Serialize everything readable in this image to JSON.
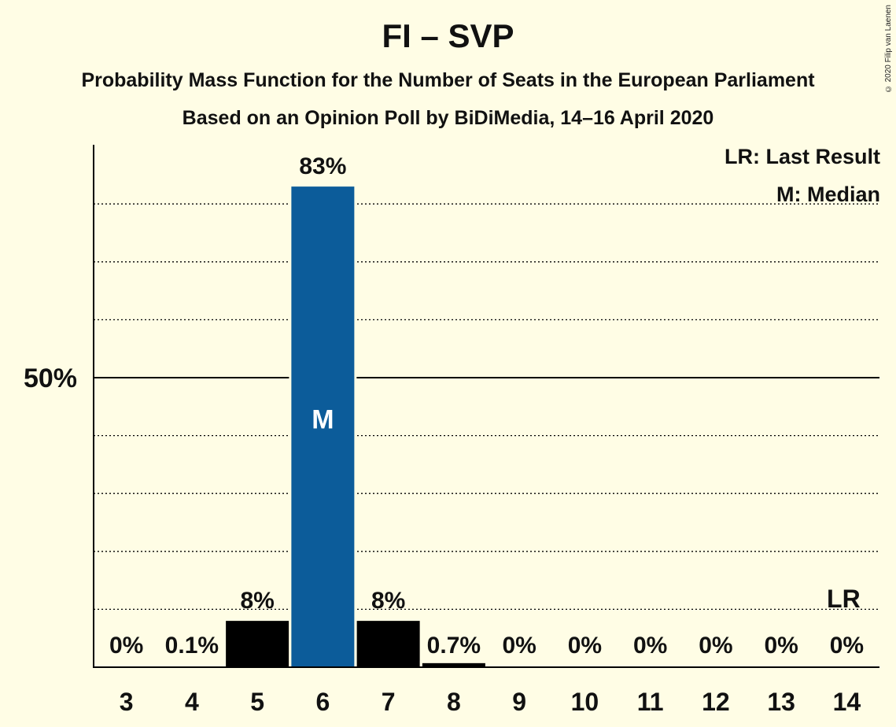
{
  "title": "FI – SVP",
  "subtitle1": "Probability Mass Function for the Number of Seats in the European Parliament",
  "subtitle2": "Based on an Opinion Poll by BiDiMedia, 14–16 April 2020",
  "copyright": "© 2020 Filip van Laenen",
  "legend": {
    "last_result": "LR: Last Result",
    "median": "M: Median"
  },
  "colors": {
    "background": "#FFFDE5",
    "median_bar": "#0C5C9A",
    "other_bar": "#000000"
  },
  "chart_data": {
    "type": "bar",
    "title": "FI – SVP",
    "categories": [
      "3",
      "4",
      "5",
      "6",
      "7",
      "8",
      "9",
      "10",
      "11",
      "12",
      "13",
      "14"
    ],
    "values": [
      0,
      0.1,
      8,
      83,
      8,
      0.7,
      0,
      0,
      0,
      0,
      0,
      0
    ],
    "data_labels": [
      "0%",
      "0.1%",
      "8%",
      "83%",
      "8%",
      "0.7%",
      "0%",
      "0%",
      "0%",
      "0%",
      "0%",
      "0%"
    ],
    "y_tick_label": "50%",
    "y_tick_value": 50,
    "ylim": [
      0,
      90
    ],
    "gridlines": [
      10,
      20,
      30,
      40,
      60,
      70,
      80
    ],
    "median_seat": "6",
    "median_marker": "M",
    "last_result_seat": "14",
    "last_result_marker": "LR"
  }
}
